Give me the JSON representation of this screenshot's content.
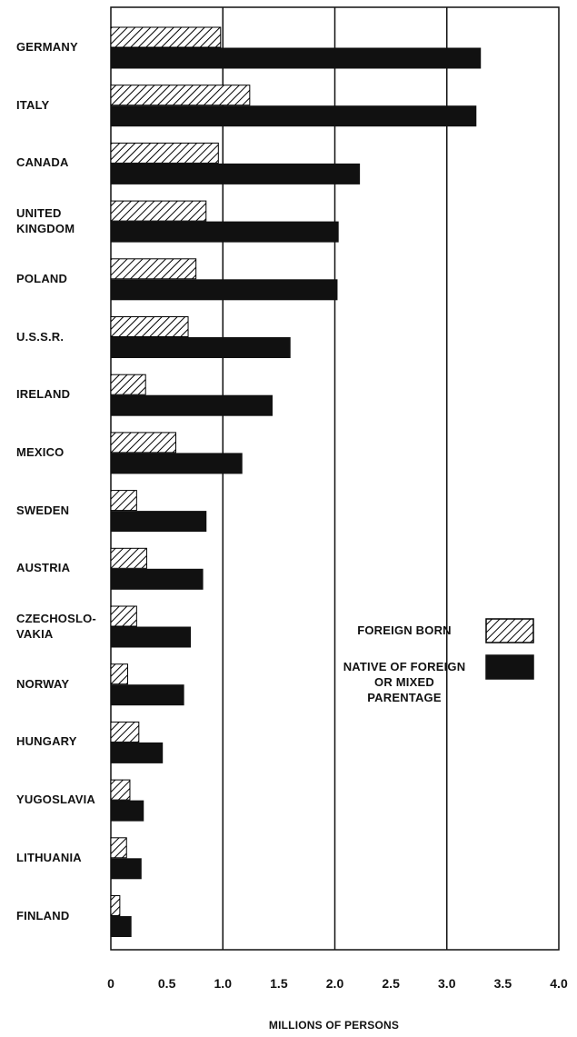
{
  "chart_data": {
    "type": "bar",
    "orientation": "horizontal",
    "xlabel": "MILLIONS OF PERSONS",
    "categories": [
      "GERMANY",
      "ITALY",
      "CANADA",
      "UNITED\nKINGDOM",
      "POLAND",
      "U.S.S.R.",
      "IRELAND",
      "MEXICO",
      "SWEDEN",
      "AUSTRIA",
      "CZECHOSLO-\nVAKIA",
      "NORWAY",
      "HUNGARY",
      "YUGOSLAVIA",
      "LITHUANIA",
      "FINLAND"
    ],
    "series": [
      {
        "name": "FOREIGN BORN",
        "color": "#000000",
        "pattern": "hatch",
        "values": [
          0.98,
          1.24,
          0.96,
          0.85,
          0.76,
          0.69,
          0.31,
          0.58,
          0.23,
          0.32,
          0.23,
          0.15,
          0.25,
          0.17,
          0.14,
          0.08
        ]
      },
      {
        "name": "NATIVE OF FOREIGN\nOR MIXED\nPARENTAGE",
        "color": "#111111",
        "values": [
          3.3,
          3.26,
          2.22,
          2.03,
          2.02,
          1.6,
          1.44,
          1.17,
          0.85,
          0.82,
          0.71,
          0.65,
          0.46,
          0.29,
          0.27,
          0.18
        ]
      }
    ],
    "xlim": [
      0,
      4
    ],
    "xticks": [
      0,
      0.5,
      {
        "value": 1,
        "label": "1.0"
      },
      1.5,
      {
        "value": 2,
        "label": "2.0"
      },
      2.5,
      {
        "value": 3,
        "label": "3.0"
      },
      3.5,
      {
        "value": 4,
        "label": "4.0"
      }
    ],
    "legend": "right"
  }
}
